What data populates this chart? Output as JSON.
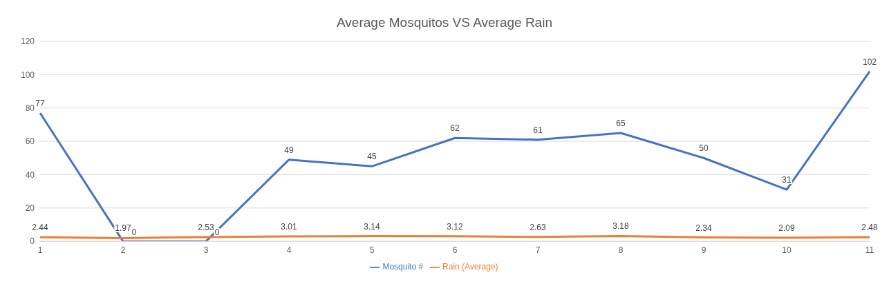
{
  "chart_data": {
    "type": "line",
    "title": "Average Mosquitos VS Average Rain",
    "categories": [
      "1",
      "2",
      "3",
      "4",
      "5",
      "6",
      "7",
      "8",
      "9",
      "10",
      "11"
    ],
    "series": [
      {
        "name": "Mosquito #",
        "color": "#4472c4",
        "values": [
          77,
          0,
          0,
          49,
          45,
          62,
          61,
          65,
          50,
          31,
          102
        ]
      },
      {
        "name": "Rain (Average)",
        "color": "#ed7d31",
        "values": [
          2.44,
          1.97,
          2.53,
          3.01,
          3.14,
          3.12,
          2.63,
          3.18,
          2.34,
          2.09,
          2.48
        ]
      }
    ],
    "ylim": [
      0,
      120
    ],
    "yticks": [
      0,
      20,
      40,
      60,
      80,
      100,
      120
    ],
    "grid": "y",
    "legend": "bottom",
    "marker": "none",
    "line_style": "solid",
    "data_labels": true
  }
}
